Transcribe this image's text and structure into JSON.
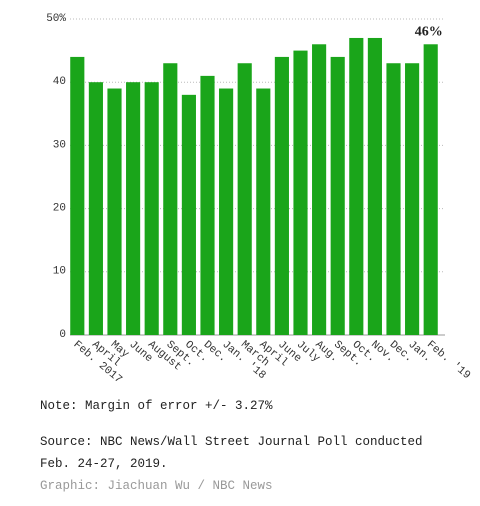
{
  "chart_data": {
    "type": "bar",
    "categories": [
      "Feb. 2017",
      "April",
      "May",
      "June",
      "August",
      "Sept.",
      "Oct.",
      "Dec.",
      "Jan. '18",
      "March",
      "April",
      "June",
      "July",
      "Aug.",
      "Sept.",
      "Oct.",
      "Nov.",
      "Dec.",
      "Jan.",
      "Feb. '19"
    ],
    "values": [
      44,
      40,
      39,
      40,
      40,
      43,
      38,
      41,
      39,
      43,
      39,
      44,
      45,
      46,
      44,
      47,
      47,
      43,
      43,
      46
    ],
    "value_labels": [
      null,
      null,
      null,
      null,
      null,
      null,
      null,
      null,
      null,
      null,
      null,
      null,
      null,
      null,
      null,
      null,
      null,
      null,
      null,
      "46%"
    ],
    "color": "#1aa51a",
    "ylim": [
      0,
      50
    ],
    "yticks": [
      0,
      10,
      20,
      30,
      40,
      {
        "value": 50,
        "label": "50%"
      }
    ],
    "grid": true
  },
  "notes": {
    "note": "Note: Margin of error +/- 3.27%",
    "source": "Source: NBC News/Wall Street Journal Poll conducted Feb. 24-27, 2019.",
    "credit": "Graphic: Jiachuan Wu / NBC News"
  }
}
